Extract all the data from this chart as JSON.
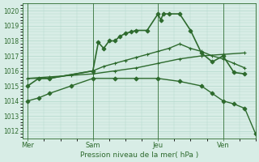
{
  "background_color": "#d8ede6",
  "grid_color": "#b2d8cc",
  "line_color": "#2d6a2d",
  "title": "Pression niveau de la mer( hPa )",
  "ylim": [
    1011.5,
    1020.5
  ],
  "yticks": [
    1012,
    1013,
    1014,
    1015,
    1016,
    1017,
    1018,
    1019,
    1020
  ],
  "xtick_labels": [
    "Mer",
    "Sam",
    "Jeu",
    "Ven"
  ],
  "xtick_positions": [
    0,
    12,
    24,
    36
  ],
  "vlines": [
    0,
    12,
    24,
    36
  ],
  "xlim": [
    -1,
    42
  ],
  "series": [
    {
      "x": [
        0,
        2,
        4,
        12,
        13,
        14,
        15,
        16,
        17,
        18,
        19,
        20,
        22,
        24,
        24.5,
        25,
        26,
        28,
        30,
        32,
        34,
        36,
        38,
        40
      ],
      "y": [
        1015.0,
        1015.5,
        1015.5,
        1016.0,
        1017.9,
        1017.5,
        1018.0,
        1018.0,
        1018.3,
        1018.5,
        1018.6,
        1018.7,
        1018.7,
        1019.8,
        1019.4,
        1019.8,
        1019.8,
        1019.8,
        1018.7,
        1017.2,
        1016.6,
        1017.0,
        1015.9,
        1015.8
      ],
      "marker": "D",
      "markersize": 2.5,
      "linewidth": 1.2
    },
    {
      "x": [
        0,
        2,
        4,
        12,
        14,
        16,
        18,
        20,
        22,
        24,
        26,
        28,
        30,
        32,
        34,
        36,
        38,
        40
      ],
      "y": [
        1015.5,
        1015.5,
        1015.5,
        1016.0,
        1016.3,
        1016.5,
        1016.7,
        1016.9,
        1017.1,
        1017.3,
        1017.5,
        1017.8,
        1017.5,
        1017.3,
        1017.0,
        1016.8,
        1016.5,
        1016.2
      ],
      "marker": "+",
      "markersize": 3.5,
      "linewidth": 1.0
    },
    {
      "x": [
        0,
        4,
        8,
        12,
        16,
        20,
        24,
        28,
        32,
        36,
        40
      ],
      "y": [
        1015.5,
        1015.6,
        1015.7,
        1015.8,
        1016.0,
        1016.2,
        1016.5,
        1016.8,
        1017.0,
        1017.1,
        1017.2
      ],
      "marker": "+",
      "markersize": 3.5,
      "linewidth": 1.0
    },
    {
      "x": [
        0,
        2,
        4,
        8,
        12,
        16,
        20,
        24,
        28,
        32,
        34,
        36,
        38,
        40,
        42
      ],
      "y": [
        1014.0,
        1014.2,
        1014.5,
        1015.0,
        1015.5,
        1015.5,
        1015.5,
        1015.5,
        1015.3,
        1015.0,
        1014.5,
        1014.0,
        1013.8,
        1013.5,
        1011.8
      ],
      "marker": "D",
      "markersize": 2.5,
      "linewidth": 1.0
    }
  ]
}
